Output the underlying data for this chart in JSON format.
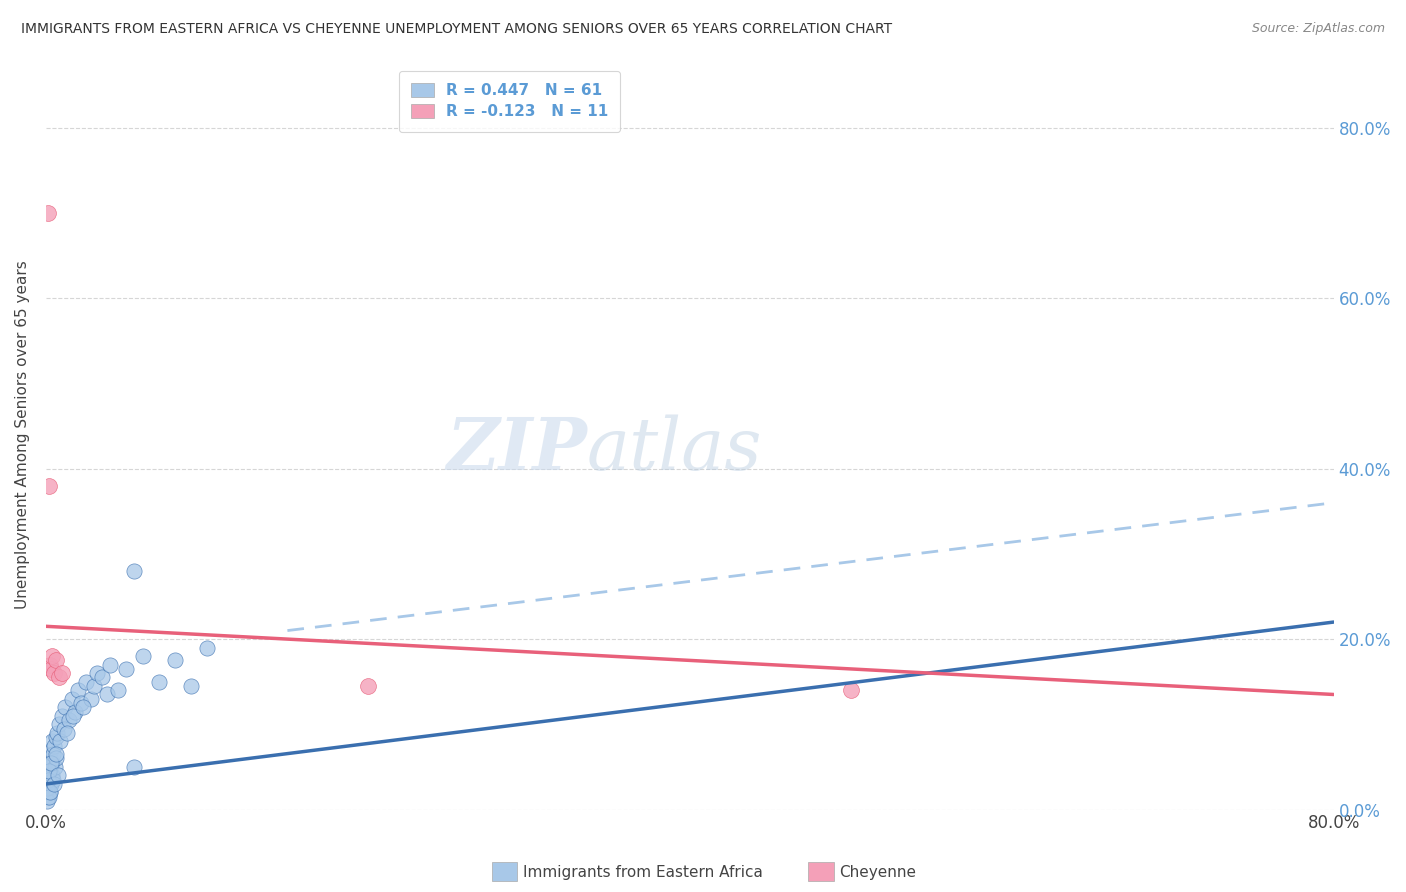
{
  "title": "IMMIGRANTS FROM EASTERN AFRICA VS CHEYENNE UNEMPLOYMENT AMONG SENIORS OVER 65 YEARS CORRELATION CHART",
  "source": "Source: ZipAtlas.com",
  "ylabel": "Unemployment Among Seniors over 65 years",
  "legend_label1": "Immigrants from Eastern Africa",
  "legend_label2": "Cheyenne",
  "blue_color": "#A8C8E8",
  "pink_color": "#F4A0B8",
  "blue_line_color": "#3A6FAF",
  "pink_line_color": "#E8607A",
  "blue_dash_color": "#A8C8E8",
  "background_color": "#FFFFFF",
  "watermark_zip": "ZIP",
  "watermark_atlas": "atlas",
  "blue_scatter_x": [
    0.05,
    0.08,
    0.1,
    0.12,
    0.15,
    0.18,
    0.2,
    0.22,
    0.25,
    0.28,
    0.3,
    0.32,
    0.35,
    0.38,
    0.4,
    0.42,
    0.45,
    0.5,
    0.55,
    0.6,
    0.65,
    0.7,
    0.8,
    0.9,
    1.0,
    1.1,
    1.2,
    1.4,
    1.6,
    1.8,
    2.0,
    2.2,
    2.5,
    2.8,
    3.0,
    3.2,
    3.5,
    3.8,
    4.0,
    4.5,
    5.0,
    5.5,
    6.0,
    7.0,
    8.0,
    9.0,
    10.0,
    0.06,
    0.09,
    0.13,
    0.16,
    0.21,
    0.26,
    0.33,
    0.48,
    0.62,
    0.75,
    1.3,
    1.7,
    2.3,
    5.5
  ],
  "blue_scatter_y": [
    2.0,
    3.0,
    1.5,
    4.0,
    2.5,
    3.5,
    5.0,
    2.0,
    6.0,
    4.5,
    3.0,
    7.0,
    5.5,
    4.0,
    8.0,
    3.5,
    6.5,
    7.5,
    5.0,
    8.5,
    6.0,
    9.0,
    10.0,
    8.0,
    11.0,
    9.5,
    12.0,
    10.5,
    13.0,
    11.5,
    14.0,
    12.5,
    15.0,
    13.0,
    14.5,
    16.0,
    15.5,
    13.5,
    17.0,
    14.0,
    16.5,
    5.0,
    18.0,
    15.0,
    17.5,
    14.5,
    19.0,
    1.0,
    2.5,
    3.5,
    1.5,
    4.5,
    2.0,
    5.5,
    3.0,
    6.5,
    4.0,
    9.0,
    11.0,
    12.0,
    28.0
  ],
  "pink_scatter_x": [
    0.15,
    0.2,
    0.25,
    0.3,
    0.4,
    0.5,
    0.6,
    0.8,
    1.0,
    20.0,
    50.0
  ],
  "pink_scatter_y": [
    70.0,
    38.0,
    17.0,
    16.5,
    18.0,
    16.0,
    17.5,
    15.5,
    16.0,
    14.5,
    14.0
  ],
  "blue_trend_x0": 0.0,
  "blue_trend_y0": 3.0,
  "blue_trend_x1": 80.0,
  "blue_trend_y1": 22.0,
  "blue_dash_x0": 15.0,
  "blue_dash_y0": 21.0,
  "blue_dash_x1": 80.0,
  "blue_dash_y1": 36.0,
  "pink_trend_x0": 0.0,
  "pink_trend_y0": 21.5,
  "pink_trend_x1": 80.0,
  "pink_trend_y1": 13.5,
  "xlim": [
    0,
    80
  ],
  "ylim": [
    0,
    88
  ],
  "yticks": [
    0,
    20,
    40,
    60,
    80
  ],
  "ytick_labels": [
    "0.0%",
    "20.0%",
    "40.0%",
    "60.0%",
    "80.0%"
  ],
  "xticks": [
    0,
    80
  ],
  "xtick_labels": [
    "0.0%",
    "80.0%"
  ]
}
